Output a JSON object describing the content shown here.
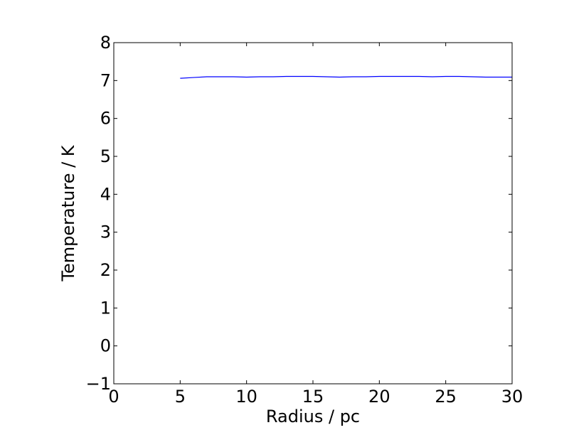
{
  "chart_data": {
    "type": "line",
    "xlabel": "Radius / pc",
    "ylabel": "Temperature / K",
    "xlim": [
      0,
      30
    ],
    "ylim": [
      -1,
      8
    ],
    "x_ticks": [
      0,
      5,
      10,
      15,
      20,
      25,
      30
    ],
    "y_ticks": [
      -1,
      0,
      1,
      2,
      3,
      4,
      5,
      6,
      7,
      8
    ],
    "x_tick_labels": [
      "0",
      "5",
      "10",
      "15",
      "20",
      "25",
      "30"
    ],
    "y_tick_labels": [
      "−1",
      "0",
      "1",
      "2",
      "3",
      "4",
      "5",
      "6",
      "7",
      "8"
    ],
    "grid": false,
    "series": [
      {
        "color": "#0000ff",
        "x": [
          5,
          6,
          7,
          8,
          9,
          10,
          11,
          12,
          13,
          14,
          15,
          16,
          17,
          18,
          19,
          20,
          21,
          22,
          23,
          24,
          25,
          26,
          27,
          28,
          29,
          30
        ],
        "y": [
          7.06,
          7.08,
          7.1,
          7.1,
          7.1,
          7.09,
          7.1,
          7.1,
          7.11,
          7.11,
          7.11,
          7.1,
          7.09,
          7.1,
          7.1,
          7.11,
          7.11,
          7.11,
          7.11,
          7.1,
          7.11,
          7.11,
          7.1,
          7.09,
          7.09,
          7.09
        ]
      }
    ]
  }
}
